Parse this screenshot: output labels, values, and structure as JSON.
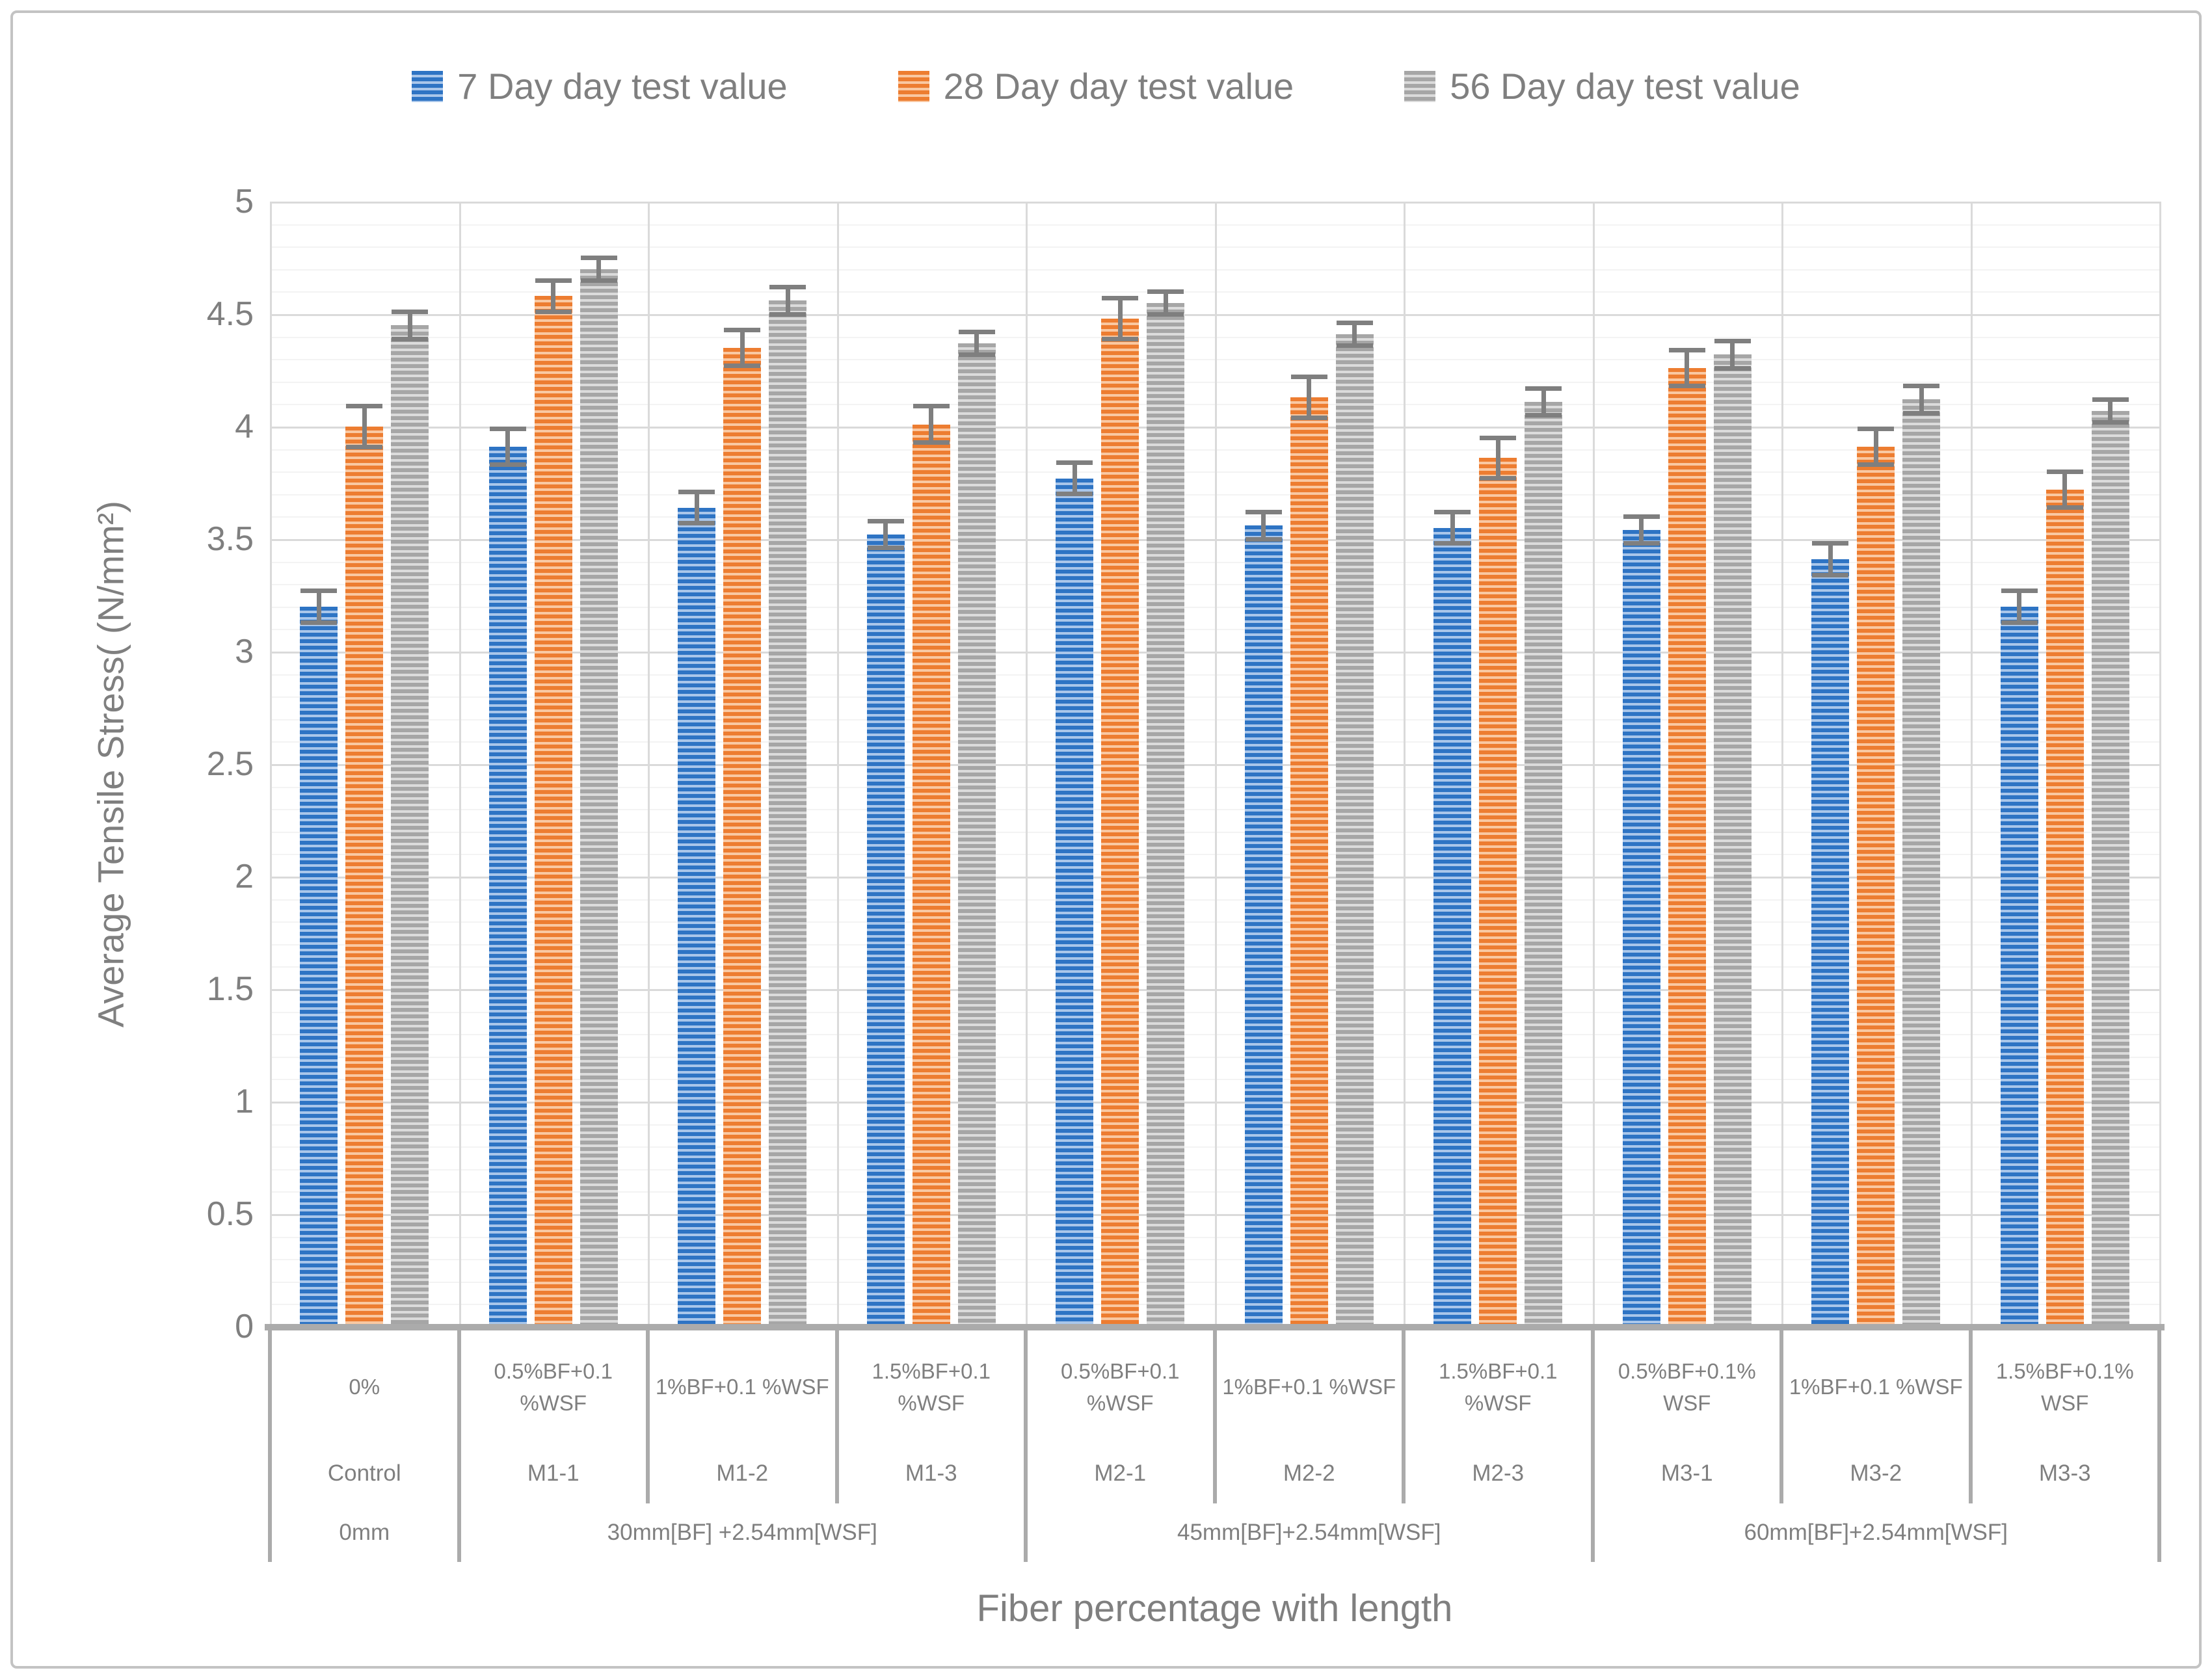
{
  "chart_data": {
    "type": "bar",
    "title": "",
    "xlabel": "Fiber percentage with length",
    "ylabel": "Average Tensile Stress( (N/mm²)",
    "ylim": [
      0,
      5
    ],
    "y_major_step": 0.5,
    "y_minor_step": 0.1,
    "y_tick_labels": [
      "0",
      "0.5",
      "1",
      "1.5",
      "2",
      "2.5",
      "3",
      "3.5",
      "4",
      "4.5",
      "5"
    ],
    "grid": {
      "horizontal_minor": true,
      "horizontal_major": true,
      "vertical_category": true
    },
    "legend_position": "top-center",
    "categories": [
      {
        "pct_lines": [
          "0%"
        ],
        "mix": "Control"
      },
      {
        "pct_lines": [
          "0.5%BF+0.1",
          "%WSF"
        ],
        "mix": "M1-1"
      },
      {
        "pct_lines": [
          "1%BF+0.1 %WSF"
        ],
        "mix": "M1-2"
      },
      {
        "pct_lines": [
          "1.5%BF+0.1",
          "%WSF"
        ],
        "mix": "M1-3"
      },
      {
        "pct_lines": [
          "0.5%BF+0.1",
          "%WSF"
        ],
        "mix": "M2-1"
      },
      {
        "pct_lines": [
          "1%BF+0.1 %WSF"
        ],
        "mix": "M2-2"
      },
      {
        "pct_lines": [
          "1.5%BF+0.1",
          "%WSF"
        ],
        "mix": "M2-3"
      },
      {
        "pct_lines": [
          "0.5%BF+0.1%",
          "WSF"
        ],
        "mix": "M3-1"
      },
      {
        "pct_lines": [
          "1%BF+0.1 %WSF"
        ],
        "mix": "M3-2"
      },
      {
        "pct_lines": [
          "1.5%BF+0.1%",
          "WSF"
        ],
        "mix": "M3-3"
      }
    ],
    "length_groups": [
      {
        "label": "0mm",
        "span": 1
      },
      {
        "label": "30mm[BF] +2.54mm[WSF]",
        "span": 3
      },
      {
        "label": "45mm[BF]+2.54mm[WSF]",
        "span": 3
      },
      {
        "label": "60mm[BF]+2.54mm[WSF]",
        "span": 3
      }
    ],
    "series": [
      {
        "name": "7 Day day test value",
        "color": "#2E74C4",
        "color_light": "#A9C6EA",
        "values": [
          3.2,
          3.91,
          3.64,
          3.52,
          3.77,
          3.56,
          3.55,
          3.54,
          3.41,
          3.2
        ],
        "errors": [
          0.07,
          0.08,
          0.07,
          0.06,
          0.07,
          0.06,
          0.07,
          0.06,
          0.07,
          0.07
        ]
      },
      {
        "name": "28 Day day test value",
        "color": "#ED7D31",
        "color_light": "#F9C8A2",
        "values": [
          4.0,
          4.58,
          4.35,
          4.01,
          4.48,
          4.13,
          3.86,
          4.26,
          3.91,
          3.72
        ],
        "errors": [
          0.09,
          0.07,
          0.08,
          0.08,
          0.09,
          0.09,
          0.09,
          0.08,
          0.08,
          0.08
        ]
      },
      {
        "name": "56 Day day test value",
        "color": "#A6A6A6",
        "color_light": "#DBDBDB",
        "values": [
          4.45,
          4.7,
          4.56,
          4.37,
          4.55,
          4.41,
          4.11,
          4.32,
          4.12,
          4.07
        ],
        "errors": [
          0.06,
          0.05,
          0.06,
          0.05,
          0.05,
          0.05,
          0.06,
          0.06,
          0.06,
          0.05
        ]
      }
    ],
    "style": {
      "grid_minor_color": "#f3f3f3",
      "grid_major_color": "#dadada",
      "axis_line_color": "#ababab",
      "error_bar_color": "#7f7f7f",
      "text_color": "#7f7f7f"
    }
  }
}
